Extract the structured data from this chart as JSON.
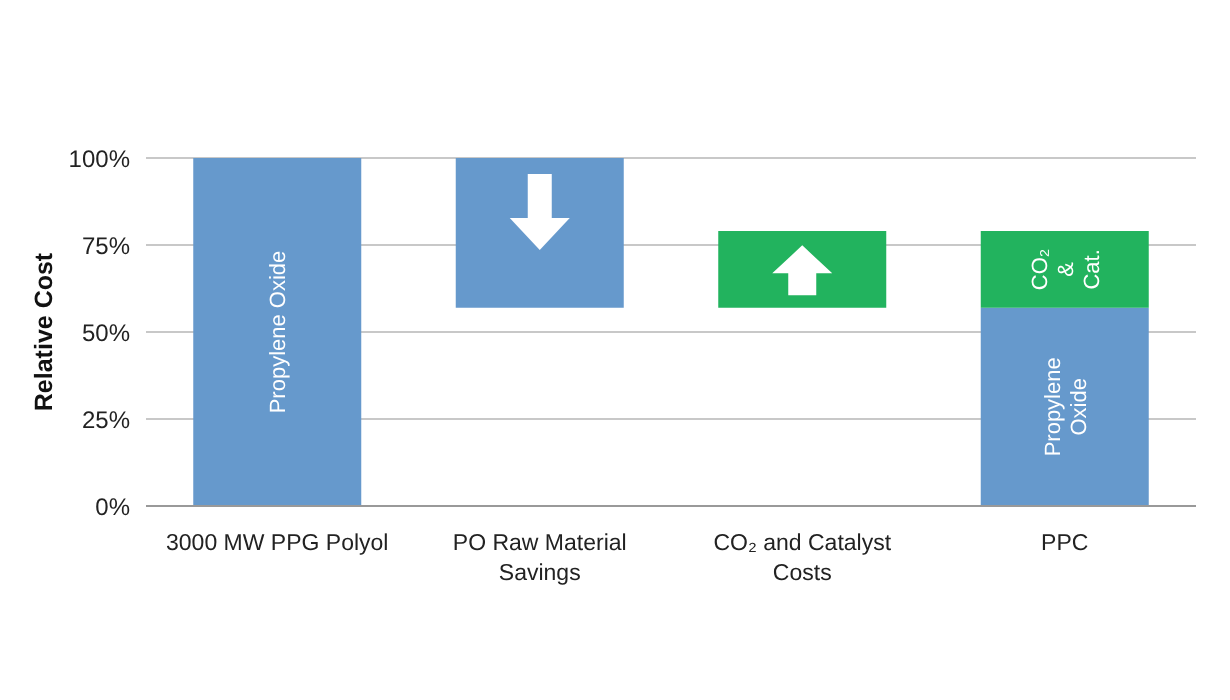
{
  "chart_data": {
    "type": "bar",
    "ylabel": "Relative Cost",
    "categories": [
      "3000 MW PPG Polyol",
      "PO Raw Material Savings",
      "CO₂ and Catalyst Costs",
      "PPC"
    ],
    "series": [
      {
        "color": "#6699cc",
        "values": [
          100,
          43,
          null,
          57
        ],
        "base": [
          0,
          57,
          null,
          0
        ]
      },
      {
        "color": "#22b35e",
        "values": [
          null,
          null,
          22,
          22
        ],
        "base": [
          null,
          null,
          57,
          57
        ]
      }
    ],
    "ylim": [
      0,
      100
    ],
    "yticks": [
      {
        "value": 0,
        "label": "0%"
      },
      {
        "value": 25,
        "label": "25%"
      },
      {
        "value": 50,
        "label": "50%"
      },
      {
        "value": 75,
        "label": "75%"
      },
      {
        "value": 100,
        "label": "100%"
      }
    ],
    "grid": "y",
    "legend": false,
    "annotations": [
      "Propylene Oxide",
      "CO₂ & Cat.",
      "Propylene Oxide"
    ]
  }
}
